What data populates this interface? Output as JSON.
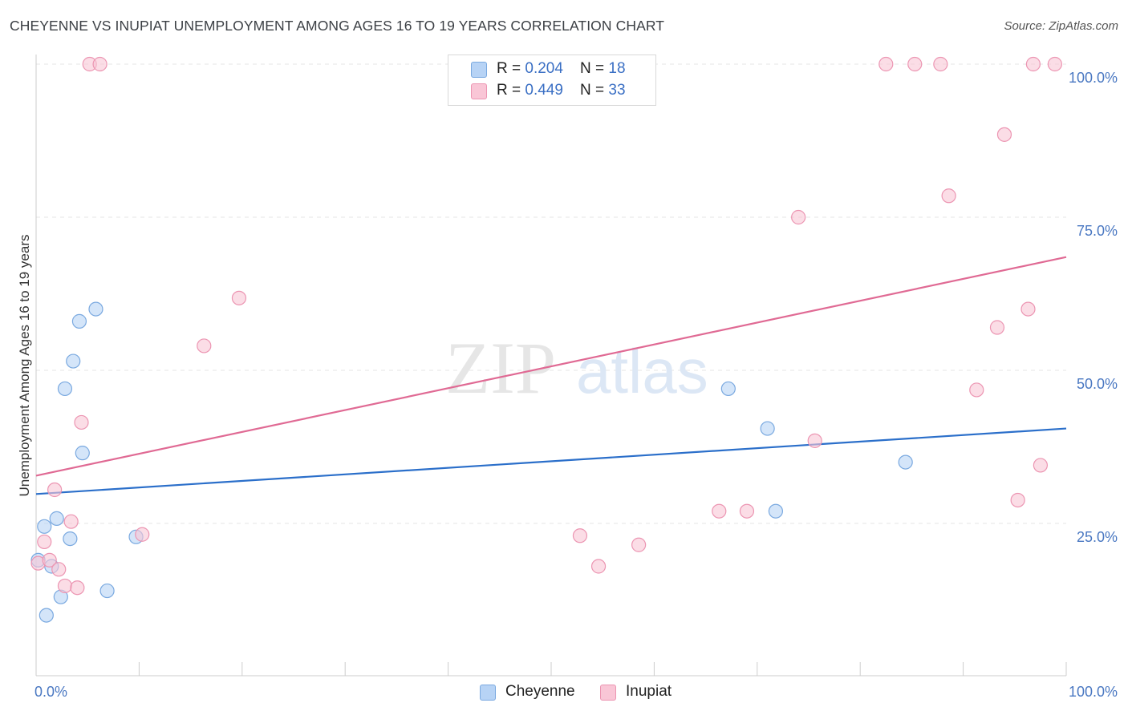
{
  "header": {
    "title": "CHEYENNE VS INUPIAT UNEMPLOYMENT AMONG AGES 16 TO 19 YEARS CORRELATION CHART",
    "source": "Source: ZipAtlas.com"
  },
  "watermark": {
    "zip": "ZIP",
    "atlas": "atlas"
  },
  "legend": {
    "rows": [
      {
        "r_label": "R = ",
        "r_value": "0.204",
        "n_label": "N = ",
        "n_value": "18",
        "color": "#b7d3f5",
        "border": "#7aa9e0"
      },
      {
        "r_label": "R = ",
        "r_value": "0.449",
        "n_label": "N = ",
        "n_value": "33",
        "color": "#f9c6d6",
        "border": "#ec95b2"
      }
    ]
  },
  "bottom_legend": [
    {
      "label": "Cheyenne",
      "color": "#b7d3f5",
      "border": "#7aa9e0"
    },
    {
      "label": "Inupiat",
      "color": "#f9c6d6",
      "border": "#ec95b2"
    }
  ],
  "chart_data": {
    "type": "scatter",
    "title": "CHEYENNE VS INUPIAT UNEMPLOYMENT AMONG AGES 16 TO 19 YEARS CORRELATION CHART",
    "xlabel": "",
    "ylabel": "Unemployment Among Ages 16 to 19 years",
    "xlim": [
      0,
      100
    ],
    "ylim": [
      0,
      100
    ],
    "x_tick_labels": [
      "0.0%",
      "100.0%"
    ],
    "y_ticks": [
      {
        "value": 25,
        "label": "25.0%"
      },
      {
        "value": 50,
        "label": "50.0%"
      },
      {
        "value": 75,
        "label": "75.0%"
      },
      {
        "value": 100,
        "label": "100.0%"
      }
    ],
    "grid": true,
    "series": [
      {
        "name": "Cheyenne",
        "color": "#b7d3f5",
        "edge": "#7aa9e0",
        "line_color": "#2b6fca",
        "trend": {
          "start": [
            0,
            29.8
          ],
          "end": [
            100,
            40.5
          ]
        },
        "points": [
          [
            0.2,
            19.0
          ],
          [
            0.8,
            24.5
          ],
          [
            1.0,
            10.0
          ],
          [
            1.5,
            18.0
          ],
          [
            2.0,
            25.8
          ],
          [
            2.4,
            13.0
          ],
          [
            2.8,
            47.0
          ],
          [
            3.3,
            22.5
          ],
          [
            3.6,
            51.5
          ],
          [
            4.2,
            58.0
          ],
          [
            4.5,
            36.5
          ],
          [
            5.8,
            60.0
          ],
          [
            6.9,
            14.0
          ],
          [
            9.7,
            22.8
          ],
          [
            67.2,
            47.0
          ],
          [
            71.0,
            40.5
          ],
          [
            71.8,
            27.0
          ],
          [
            84.4,
            35.0
          ]
        ]
      },
      {
        "name": "Inupiat",
        "color": "#f9c6d6",
        "edge": "#ec95b2",
        "line_color": "#e06a94",
        "trend": {
          "start": [
            0,
            32.8
          ],
          "end": [
            100,
            68.5
          ]
        },
        "points": [
          [
            0.2,
            18.5
          ],
          [
            0.8,
            22.0
          ],
          [
            1.3,
            19.0
          ],
          [
            1.8,
            30.5
          ],
          [
            2.2,
            17.5
          ],
          [
            2.8,
            14.8
          ],
          [
            3.4,
            25.3
          ],
          [
            4.0,
            14.5
          ],
          [
            4.4,
            41.5
          ],
          [
            5.2,
            100.0
          ],
          [
            6.2,
            100.0
          ],
          [
            10.3,
            23.2
          ],
          [
            16.3,
            54.0
          ],
          [
            19.7,
            61.8
          ],
          [
            52.8,
            23.0
          ],
          [
            54.6,
            18.0
          ],
          [
            58.5,
            21.5
          ],
          [
            66.3,
            27.0
          ],
          [
            69.0,
            27.0
          ],
          [
            74.0,
            75.0
          ],
          [
            75.6,
            38.5
          ],
          [
            82.5,
            100.0
          ],
          [
            85.3,
            100.0
          ],
          [
            87.8,
            100.0
          ],
          [
            88.6,
            78.5
          ],
          [
            91.3,
            46.8
          ],
          [
            93.3,
            57.0
          ],
          [
            94.0,
            88.5
          ],
          [
            95.3,
            28.8
          ],
          [
            96.3,
            60.0
          ],
          [
            96.8,
            100.0
          ],
          [
            97.5,
            34.5
          ],
          [
            98.9,
            100.0
          ]
        ]
      }
    ]
  }
}
